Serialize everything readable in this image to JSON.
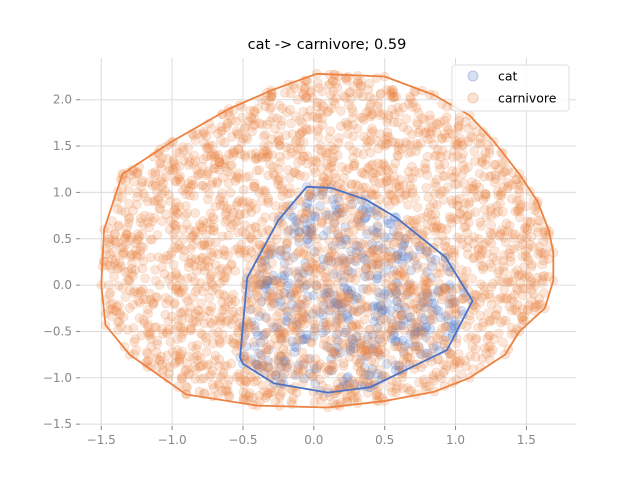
{
  "chart_data": {
    "type": "scatter",
    "title": "cat -> carnivore; 0.59",
    "xlabel": "",
    "ylabel": "",
    "xlim": [
      -1.65,
      1.85
    ],
    "ylim": [
      -1.52,
      2.45
    ],
    "x_ticks": [
      -1.5,
      -1.0,
      -0.5,
      0.0,
      0.5,
      1.0,
      1.5
    ],
    "x_tick_labels": [
      "−1.5",
      "−1.0",
      "−0.5",
      "0.0",
      "0.5",
      "1.0",
      "1.5"
    ],
    "y_ticks": [
      -1.5,
      -1.0,
      -0.5,
      0.0,
      0.5,
      1.0,
      1.5,
      2.0
    ],
    "y_tick_labels": [
      "−1.5",
      "−1.0",
      "−0.5",
      "0.0",
      "0.5",
      "1.0",
      "1.5",
      "2.0"
    ],
    "grid": true,
    "legend_position": "top-right",
    "series": [
      {
        "name": "cat",
        "color": "#4c72c4",
        "hull": [
          [
            -0.05,
            1.06
          ],
          [
            0.12,
            1.05
          ],
          [
            0.37,
            0.92
          ],
          [
            0.58,
            0.73
          ],
          [
            0.93,
            0.3
          ],
          [
            1.12,
            -0.17
          ],
          [
            0.94,
            -0.7
          ],
          [
            0.4,
            -1.1
          ],
          [
            0.1,
            -1.16
          ],
          [
            -0.28,
            -1.06
          ],
          [
            -0.5,
            -0.85
          ],
          [
            -0.52,
            -0.78
          ],
          [
            -0.47,
            0.08
          ],
          [
            -0.25,
            0.7
          ]
        ]
      },
      {
        "name": "carnivore",
        "color": "#ed8241",
        "hull": [
          [
            0.02,
            2.28
          ],
          [
            0.5,
            2.25
          ],
          [
            0.85,
            2.05
          ],
          [
            1.1,
            1.83
          ],
          [
            1.27,
            1.55
          ],
          [
            1.45,
            1.2
          ],
          [
            1.58,
            0.9
          ],
          [
            1.66,
            0.58
          ],
          [
            1.69,
            0.35
          ],
          [
            1.69,
            0.05
          ],
          [
            1.63,
            -0.25
          ],
          [
            1.45,
            -0.5
          ],
          [
            1.35,
            -0.75
          ],
          [
            1.1,
            -1.0
          ],
          [
            0.85,
            -1.15
          ],
          [
            0.5,
            -1.25
          ],
          [
            0.1,
            -1.32
          ],
          [
            -0.4,
            -1.3
          ],
          [
            -0.9,
            -1.18
          ],
          [
            -1.3,
            -0.75
          ],
          [
            -1.47,
            -0.43
          ],
          [
            -1.5,
            0.0
          ],
          [
            -1.48,
            0.6
          ],
          [
            -1.35,
            1.2
          ],
          [
            -1.0,
            1.55
          ],
          [
            -0.6,
            1.9
          ],
          [
            -0.3,
            2.1
          ]
        ]
      }
    ]
  }
}
